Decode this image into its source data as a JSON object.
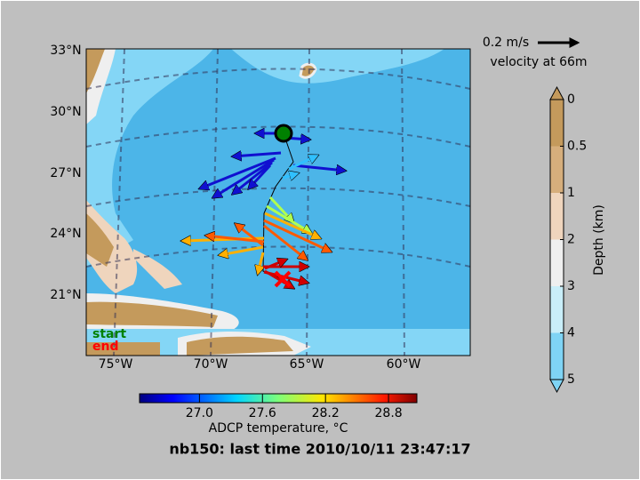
{
  "map": {
    "lat_labels": [
      "33°N",
      "30°N",
      "27°N",
      "24°N",
      "21°N"
    ],
    "lon_labels": [
      "75°W",
      "70°W",
      "65°W",
      "60°W"
    ],
    "legend": {
      "start": "start",
      "end": "end"
    }
  },
  "velocity_key": {
    "speed": "0.2 m/s",
    "label": "velocity at 66m"
  },
  "depth_colorbar": {
    "label": "Depth (km)",
    "ticks": [
      0,
      0.5,
      1,
      2,
      3,
      4,
      5
    ],
    "colors": [
      "#c49a5c",
      "#d6ae7c",
      "#efd5bd",
      "#efefef",
      "#c9eef9",
      "#7fd4f5"
    ]
  },
  "temperature_colorbar": {
    "label": "ADCP temperature, °C",
    "lim": [
      26.43,
      29.07
    ],
    "ticks": [
      {
        "value": 27,
        "label": "27.0"
      },
      {
        "value": 27.6,
        "label": "27.6"
      },
      {
        "value": 28.2,
        "label": "28.2"
      },
      {
        "value": 28.8,
        "label": "28.8"
      }
    ]
  },
  "title": "nb150: last time 2010/10/11 23:47:17"
}
